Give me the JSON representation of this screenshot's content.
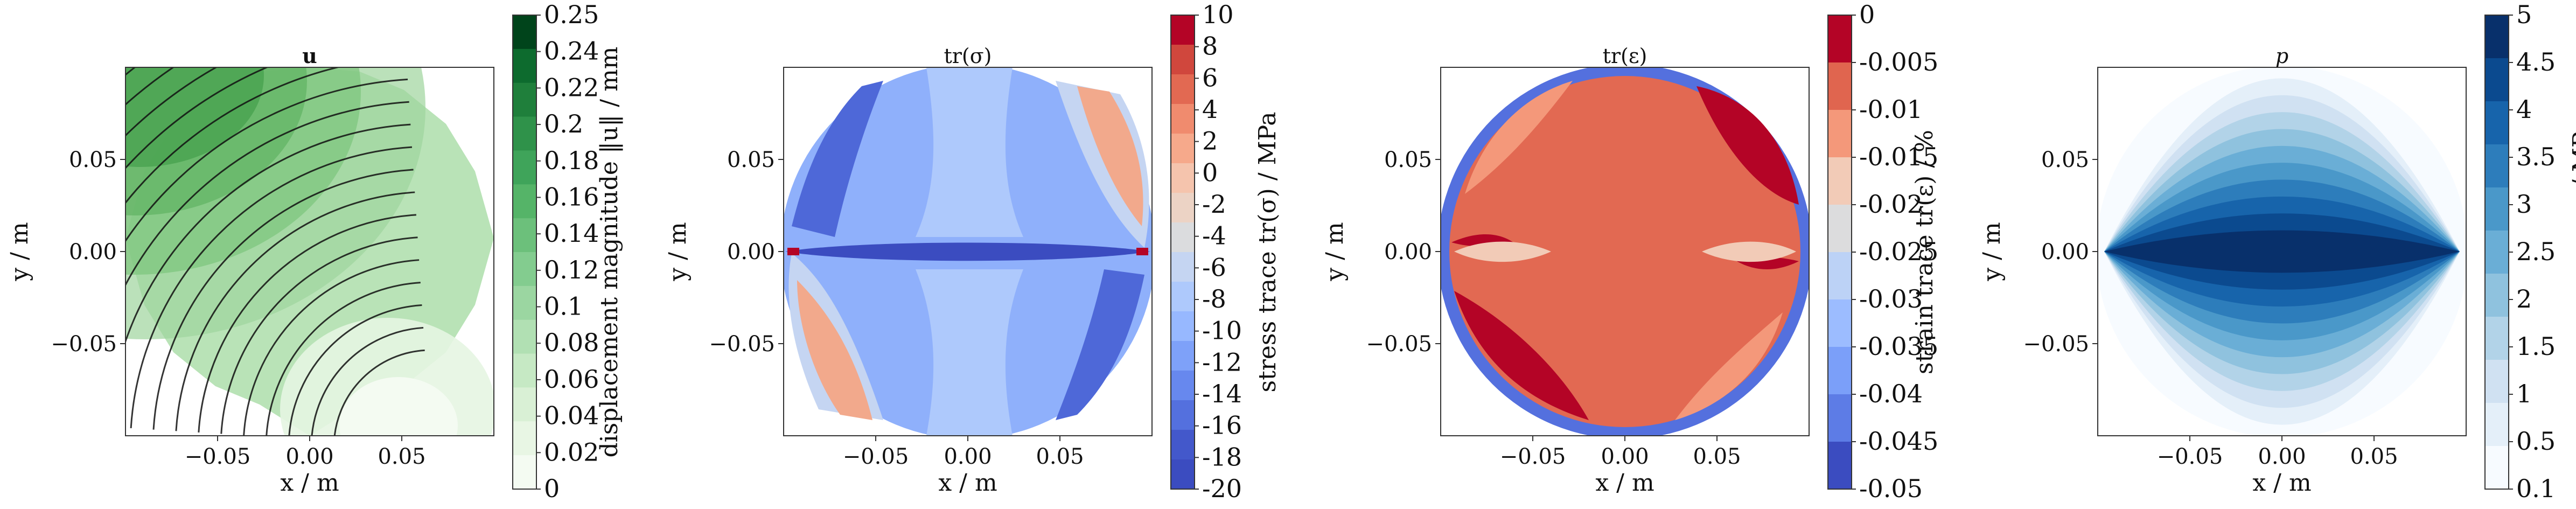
{
  "chart_data": [
    {
      "type": "heatmap",
      "title": "u",
      "xlabel": "x / m",
      "ylabel": "y / m",
      "xticks": [
        "−0.05",
        "0.00",
        "0.05"
      ],
      "yticks": [
        "0.05",
        "0.00",
        "−0.05"
      ],
      "xlim": [
        -0.1,
        0.1
      ],
      "ylim": [
        -0.1,
        0.1
      ],
      "colorbar": {
        "label": "displacement magnitude ‖u‖ / mm",
        "ticks": [
          "0.25",
          "0.24",
          "0.22",
          "0.2",
          "0.18",
          "0.16",
          "0.14",
          "0.12",
          "0.1",
          "0.08",
          "0.06",
          "0.04",
          "0.02",
          "0"
        ],
        "values": [
          0.25,
          0.24,
          0.22,
          0.2,
          0.18,
          0.16,
          0.14,
          0.12,
          0.1,
          0.08,
          0.06,
          0.04,
          0.02,
          0
        ],
        "colors": [
          "#00441b",
          "#0d6b2e",
          "#1f7f3b",
          "#2f924a",
          "#3fa45a",
          "#55b468",
          "#6cc07b",
          "#83cc8f",
          "#9bd6a1",
          "#b1e0b3",
          "#c6e9c4",
          "#d9f0d5",
          "#e8f6e4",
          "#f4fbf2"
        ]
      },
      "field": "streamlines, increasing magnitude toward upper-left"
    },
    {
      "type": "heatmap",
      "title": "tr(σ)",
      "xlabel": "x / m",
      "ylabel": "y / m",
      "xticks": [
        "−0.05",
        "0.00",
        "0.05"
      ],
      "yticks": [
        "0.05",
        "0.00",
        "−0.05"
      ],
      "xlim": [
        -0.1,
        0.1
      ],
      "ylim": [
        -0.1,
        0.1
      ],
      "colorbar": {
        "label": "stress trace tr(σ) / MPa",
        "ticks": [
          "10",
          "8",
          "6",
          "4",
          "2",
          "0",
          "-2",
          "-4",
          "-6",
          "-8",
          "-10",
          "-12",
          "-14",
          "-16",
          "-18",
          "-20"
        ],
        "values": [
          10,
          8,
          6,
          4,
          2,
          0,
          -2,
          -4,
          -6,
          -8,
          -10,
          -12,
          -14,
          -16,
          -18,
          -20
        ],
        "colors": [
          "#b40426",
          "#d0473d",
          "#e26952",
          "#f08b6e",
          "#f6a98b",
          "#f5c4ad",
          "#ecd3c5",
          "#dbdcde",
          "#c5d5f2",
          "#aec9fc",
          "#97b8ff",
          "#7ea1f9",
          "#6788ee",
          "#5470de",
          "#4358cb",
          "#3b4cc0"
        ]
      }
    },
    {
      "type": "heatmap",
      "title": "tr(ε)",
      "xlabel": "x / m",
      "ylabel": "y / m",
      "xticks": [
        "−0.05",
        "0.00",
        "0.05"
      ],
      "yticks": [
        "0.05",
        "0.00",
        "−0.05"
      ],
      "xlim": [
        -0.1,
        0.1
      ],
      "ylim": [
        -0.1,
        0.1
      ],
      "colorbar": {
        "label": "strain trace tr(ε) / %",
        "ticks": [
          "0",
          "-0.005",
          "-0.01",
          "-0.015",
          "-0.02",
          "-0.025",
          "-0.03",
          "-0.035",
          "-0.04",
          "-0.045",
          "-0.05"
        ],
        "values": [
          0,
          -0.005,
          -0.01,
          -0.015,
          -0.02,
          -0.025,
          -0.03,
          -0.035,
          -0.04,
          -0.045,
          -0.05
        ],
        "colors": [
          "#b40426",
          "#e0654f",
          "#f4987a",
          "#f2cbb7",
          "#dcdcdd",
          "#bcd2f6",
          "#9cbcff",
          "#7b9ff9",
          "#5d7ce6",
          "#3b4cc0"
        ]
      }
    },
    {
      "type": "heatmap",
      "title": "p",
      "xlabel": "x / m",
      "ylabel": "y / m",
      "xticks": [
        "−0.05",
        "0.00",
        "0.05"
      ],
      "yticks": [
        "0.05",
        "0.00",
        "−0.05"
      ],
      "xlim": [
        -0.1,
        0.1
      ],
      "ylim": [
        -0.1,
        0.1
      ],
      "colorbar": {
        "label": "pore pressure p / MPa",
        "ticks": [
          "5",
          "4.5",
          "4",
          "3.5",
          "3",
          "2.5",
          "2",
          "1.5",
          "1",
          "0.5",
          "0.1"
        ],
        "values": [
          5,
          4.5,
          4,
          3.5,
          3,
          2.5,
          2,
          1.5,
          1,
          0.5,
          0.1
        ],
        "colors": [
          "#08306b",
          "#0b4a8f",
          "#1764ab",
          "#2d7dbb",
          "#4a98c9",
          "#6aaed6",
          "#8fc2de",
          "#b2d3e8",
          "#d0e1f2",
          "#e4eff9",
          "#f7fbff"
        ]
      },
      "field": "lens-shaped contours concentrated along y = 0"
    }
  ]
}
